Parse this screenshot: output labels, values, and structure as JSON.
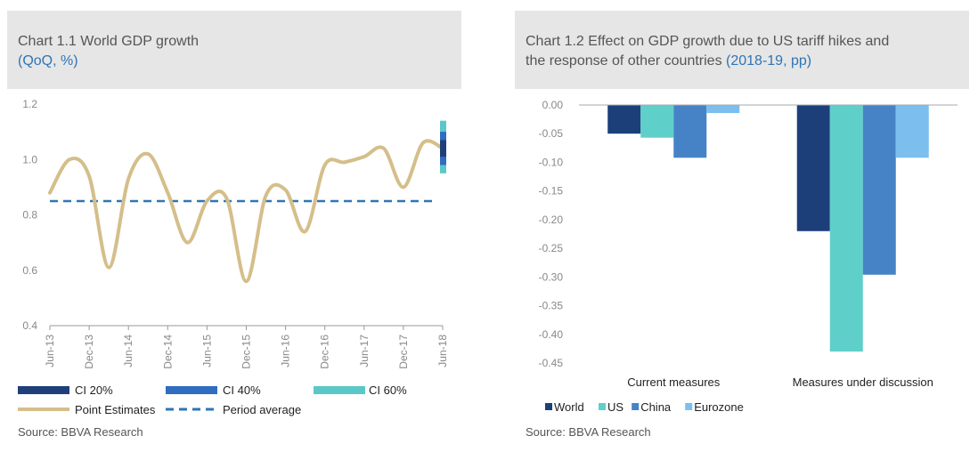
{
  "charts": [
    {
      "title": "Chart 1.1 World GDP growth",
      "subtitle": "(QoQ, %)",
      "source": "Source: BBVA Research",
      "legend": [
        "CI 20%",
        "CI 40%",
        "CI 60%",
        "Point Estimates",
        "Period average"
      ]
    },
    {
      "title_line1": "Chart 1.2 Effect on GDP growth due to US tariff hikes and",
      "title_line2": "the response of other countries",
      "subtitle": "(2018-19, pp)",
      "source": "Source: BBVA Research"
    }
  ],
  "chart_data": [
    {
      "type": "line",
      "title": "Chart 1.1 World GDP growth",
      "ylim": [
        0.4,
        1.2
      ],
      "yticks": [
        "0.4",
        "0.6",
        "0.8",
        "1.0",
        "1.2"
      ],
      "xticks": [
        "Jun-13",
        "Dec-13",
        "Jun-14",
        "Dec-14",
        "Jun-15",
        "Dec-15",
        "Jun-16",
        "Dec-16",
        "Jun-17",
        "Dec-17",
        "Jun-18"
      ],
      "series": [
        {
          "name": "Point Estimates",
          "color": "#d4bf8a",
          "x": [
            0,
            1,
            2,
            3,
            4,
            5,
            6,
            7,
            8,
            9,
            10,
            11,
            12,
            13,
            14,
            15,
            16,
            17,
            18,
            19,
            20
          ],
          "values": [
            0.88,
            1.0,
            0.94,
            0.61,
            0.93,
            1.02,
            0.88,
            0.7,
            0.85,
            0.86,
            0.56,
            0.87,
            0.89,
            0.74,
            0.98,
            0.99,
            1.01,
            1.04,
            0.9,
            1.06,
            1.04
          ]
        },
        {
          "name": "Period average",
          "color": "#2e75b6",
          "values": [
            0.85,
            0.85
          ]
        }
      ],
      "confidence_intervals": [
        {
          "name": "CI 60%",
          "color": "#5bc8c8",
          "low": 0.95,
          "high": 1.14
        },
        {
          "name": "CI 40%",
          "color": "#2e6dbf",
          "low": 0.98,
          "high": 1.1
        },
        {
          "name": "CI 20%",
          "color": "#1f3f7a",
          "low": 1.01,
          "high": 1.07
        }
      ]
    },
    {
      "type": "bar",
      "title": "Chart 1.2 Effect on GDP growth due to US tariff hikes and the response of other countries",
      "ylim": [
        -0.45,
        0.0
      ],
      "yticks": [
        "0.00",
        "-0.05",
        "-0.10",
        "-0.15",
        "-0.20",
        "-0.25",
        "-0.30",
        "-0.35",
        "-0.40",
        "-0.45"
      ],
      "categories": [
        "Current measures",
        "Measures under discussion"
      ],
      "series": [
        {
          "name": "World",
          "color": "#1c3f7a",
          "values": [
            -0.05,
            -0.22
          ]
        },
        {
          "name": "US",
          "color": "#5fcfca",
          "values": [
            -0.057,
            -0.43
          ]
        },
        {
          "name": "China",
          "color": "#4683c6",
          "values": [
            -0.092,
            -0.296
          ]
        },
        {
          "name": "Eurozone",
          "color": "#7cbfee",
          "values": [
            -0.014,
            -0.092
          ]
        }
      ]
    }
  ]
}
